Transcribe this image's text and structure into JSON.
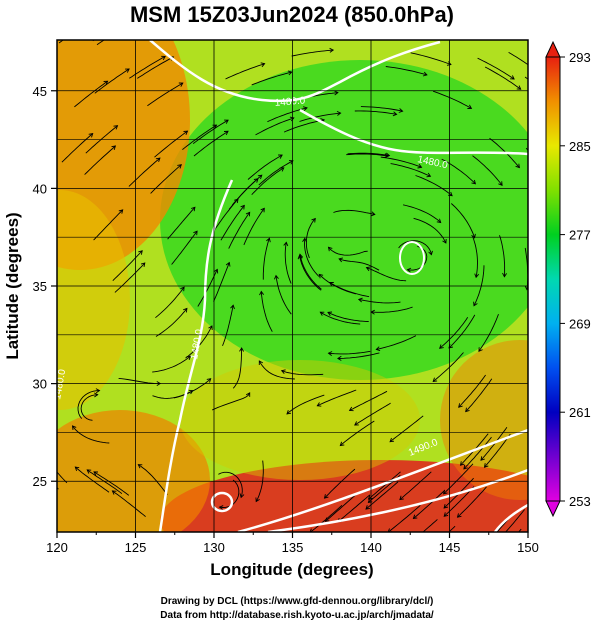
{
  "chart_data": {
    "type": "heatmap",
    "title": "MSM 15Z03Jun2024 (850.0hPa)",
    "xlabel": "Longitude (degrees)",
    "ylabel": "Latitude  (degrees)",
    "xlim": [
      120,
      150
    ],
    "ylim": [
      22.4,
      47.6
    ],
    "xticks": [
      120,
      125,
      130,
      135,
      140,
      145,
      150
    ],
    "yticks": [
      25,
      30,
      35,
      40,
      45
    ],
    "grid": true,
    "colorbar": {
      "min": 253,
      "max": 293,
      "tick_values": [
        293,
        285,
        277,
        269,
        261,
        253
      ],
      "tick_labels": [
        "293",
        "285",
        "277",
        "269",
        "261",
        "253"
      ]
    },
    "contour_labels": [
      "1480.0",
      "1480.0",
      "1480.0",
      "1480.0",
      "1490.0"
    ],
    "credits": [
      "Drawing by DCL (https://www.gfd-dennou.org/library/dcl/)",
      "Data from http://database.rish.kyoto-u.ac.jp/arch/jmadata/"
    ]
  }
}
